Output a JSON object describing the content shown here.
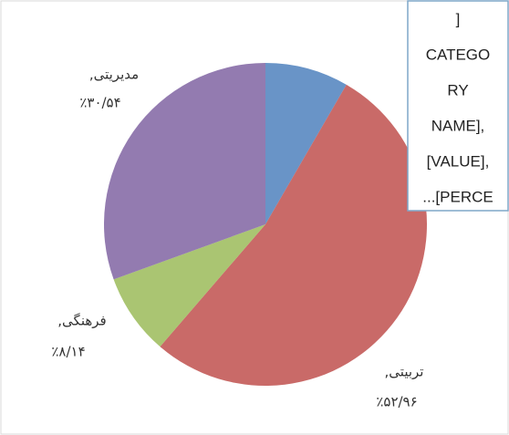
{
  "chart_data": {
    "type": "pie",
    "categories": [
      null,
      "تربیتی,",
      "فرهنگی,",
      "مدیریتی,"
    ],
    "values": [
      8.36,
      52.96,
      8.14,
      30.54
    ],
    "value_labels": [
      null,
      "٪۵۲/۹۶",
      "٪۸/۱۴",
      "٪۳۰/۵۴"
    ],
    "colors": [
      "#4f81bd",
      "#c0504d",
      "#9bbb59",
      "#8064a2"
    ],
    "callout_lines": [
      "]",
      "CATEGO",
      "RY",
      "NAME],",
      "[VALUE],",
      "...[PERCE"
    ]
  }
}
